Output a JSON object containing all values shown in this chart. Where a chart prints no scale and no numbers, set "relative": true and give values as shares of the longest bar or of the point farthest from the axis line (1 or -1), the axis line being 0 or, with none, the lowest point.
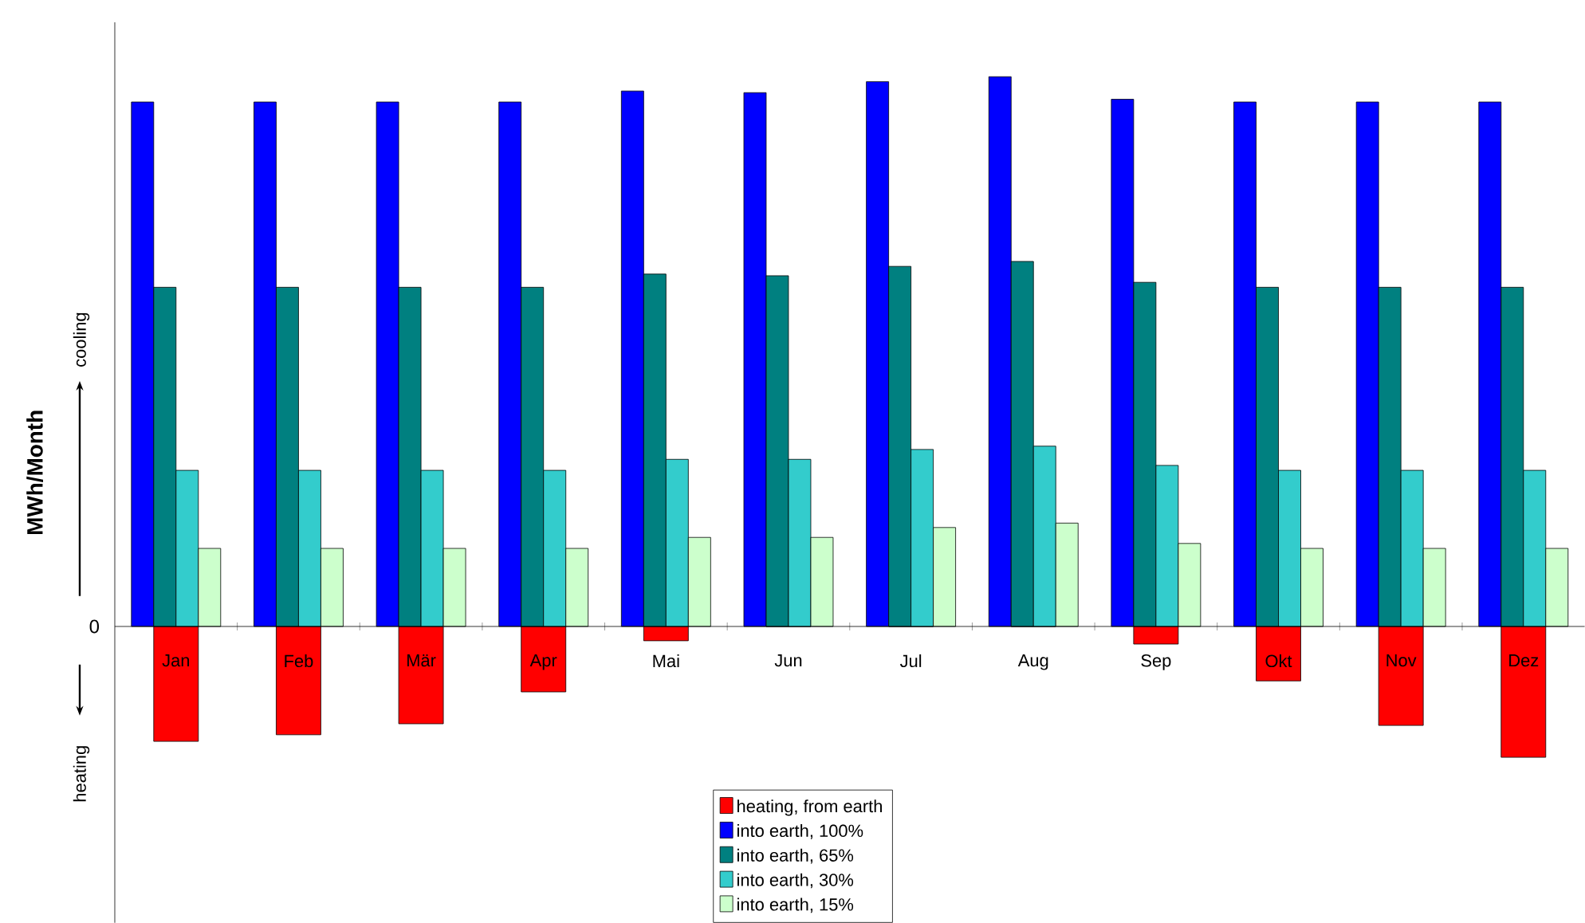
{
  "chart_data": {
    "type": "bar",
    "ylabel": "MWh/Month",
    "relative": true,
    "legend": "bottom",
    "annotations": [
      "cooling",
      "heating",
      "0"
    ],
    "categories": [
      "Jan",
      "Feb",
      "Mär",
      "Apr",
      "Mai",
      "Jun",
      "Jul",
      "Aug",
      "Sep",
      "Okt",
      "Nov",
      "Dez"
    ],
    "series": [
      {
        "name": "heating, from earth",
        "color": "#ff0000",
        "values": [
          -0.209,
          -0.197,
          -0.177,
          -0.119,
          -0.026,
          0,
          0,
          0,
          -0.032,
          -0.099,
          -0.18,
          -0.238
        ]
      },
      {
        "name": "into earth, 100%",
        "color": "#0000ff",
        "values": [
          0.954,
          0.954,
          0.954,
          0.954,
          0.974,
          0.971,
          0.991,
          1,
          0.959,
          0.954,
          0.954,
          0.954
        ]
      },
      {
        "name": "into earth, 65%",
        "color": "#008080",
        "values": [
          0.617,
          0.617,
          0.617,
          0.617,
          0.641,
          0.638,
          0.655,
          0.664,
          0.626,
          0.617,
          0.617,
          0.617
        ]
      },
      {
        "name": "into earth, 30%",
        "color": "#33cccc",
        "values": [
          0.284,
          0.284,
          0.284,
          0.284,
          0.304,
          0.304,
          0.322,
          0.328,
          0.293,
          0.284,
          0.284,
          0.284
        ]
      },
      {
        "name": "into earth, 15%",
        "color": "#ccffcc",
        "values": [
          0.142,
          0.142,
          0.142,
          0.142,
          0.162,
          0.162,
          0.18,
          0.188,
          0.151,
          0.142,
          0.142,
          0.142
        ]
      }
    ]
  }
}
